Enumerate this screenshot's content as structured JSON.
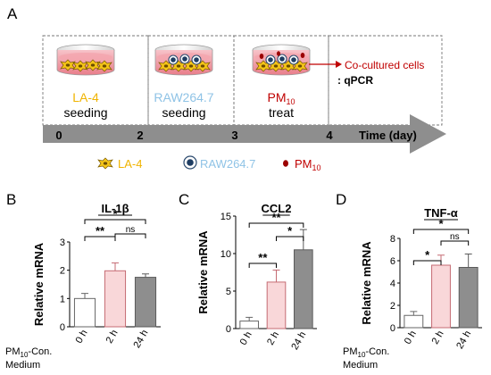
{
  "panelA": {
    "letter": "A",
    "stages": [
      {
        "name": "LA-4",
        "action": "seeding"
      },
      {
        "name": "RAW264.7",
        "action": "seeding"
      },
      {
        "name": "PM",
        "sub": "10",
        "action": "treat"
      }
    ],
    "result": {
      "line1": "Co-cultured cells",
      "line2": ": qPCR"
    },
    "timeline": {
      "ticks": [
        "0",
        "2",
        "3",
        "4"
      ],
      "label": "Time (day)"
    },
    "legend": [
      {
        "label": "LA-4"
      },
      {
        "label": "RAW264.7"
      },
      {
        "label": "PM",
        "sub": "10"
      }
    ],
    "colors": {
      "la4": "#f0b400",
      "raw": "#8fc3e6",
      "pm": "#c00000",
      "dish": "#ef8f9a",
      "arrow": "#8e8e8e"
    }
  },
  "chart_data": [
    {
      "type": "bar",
      "panel": "B",
      "title": "IL-1β",
      "ylabel": "Relative mRNA",
      "ylim": [
        0,
        3
      ],
      "yticks": [
        "0",
        "1",
        "2",
        "3"
      ],
      "categories": [
        "0 h",
        "2 h",
        "24 h"
      ],
      "values": [
        1.0,
        1.98,
        1.75
      ],
      "errors": [
        0.18,
        0.28,
        0.12
      ],
      "xlabel_prefix": "PM",
      "xlabel_sub": "10",
      "xlabel_rest": "-Con.",
      "xlabel_line2": "Medium",
      "significance": [
        {
          "from": 0,
          "to": 1,
          "label": "**"
        },
        {
          "from": 1,
          "to": 2,
          "label": "ns"
        },
        {
          "from": 0,
          "to": 2,
          "label": "*"
        }
      ]
    },
    {
      "type": "bar",
      "panel": "C",
      "title": "CCL2",
      "ylabel": "Relative mRNA",
      "ylim": [
        0,
        15
      ],
      "yticks": [
        "0",
        "5",
        "10",
        "15"
      ],
      "categories": [
        "0 h",
        "2 h",
        "24 h"
      ],
      "values": [
        1.0,
        6.2,
        10.5
      ],
      "errors": [
        0.5,
        1.6,
        2.7
      ],
      "significance": [
        {
          "from": 0,
          "to": 1,
          "label": "**"
        },
        {
          "from": 1,
          "to": 2,
          "label": "*"
        },
        {
          "from": 0,
          "to": 2,
          "label": "**"
        }
      ]
    },
    {
      "type": "bar",
      "panel": "D",
      "title": "TNF-α",
      "ylabel": "Relative mRNA",
      "ylim": [
        0,
        8
      ],
      "yticks": [
        "0",
        "2",
        "4",
        "6",
        "8"
      ],
      "categories": [
        "0 h",
        "2 h",
        "24 h"
      ],
      "values": [
        1.1,
        5.6,
        5.4
      ],
      "errors": [
        0.35,
        0.9,
        1.2
      ],
      "xlabel_prefix": "PM",
      "xlabel_sub": "10",
      "xlabel_rest": "-Con.",
      "xlabel_line2": "Medium",
      "significance": [
        {
          "from": 0,
          "to": 1,
          "label": "*"
        },
        {
          "from": 1,
          "to": 2,
          "label": "ns"
        },
        {
          "from": 0,
          "to": 2,
          "label": "*"
        }
      ]
    }
  ]
}
